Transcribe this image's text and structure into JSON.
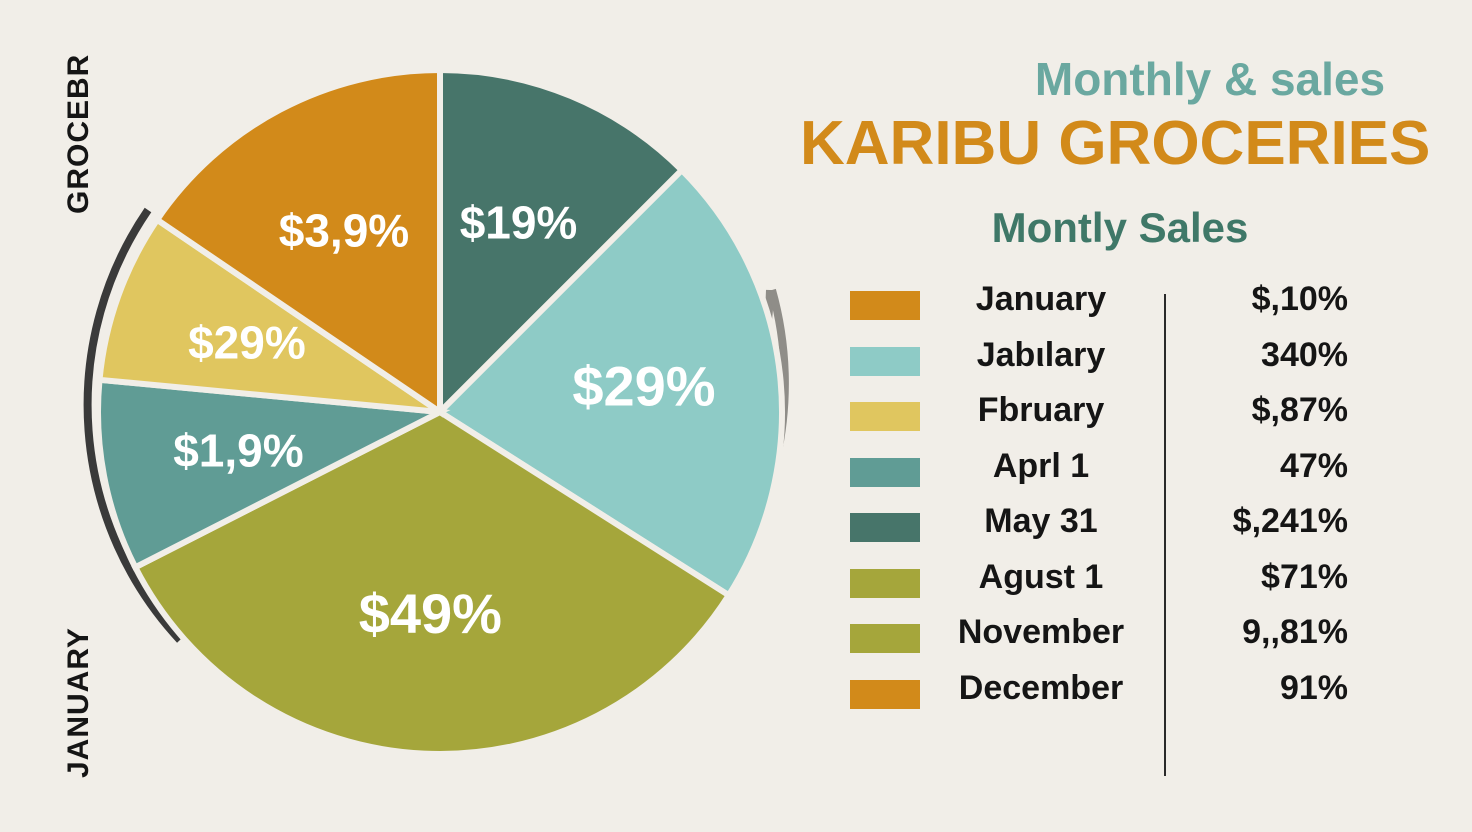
{
  "side_labels": {
    "top": "GROCEBR",
    "bottom": "JANUARY"
  },
  "titles": {
    "line1": "Monthly & sales",
    "line2": "KARIBU GROCERIES",
    "line3": "Montly Sales"
  },
  "colors": {
    "background": "#f1eee8",
    "orange": "#d28a1a",
    "dark_teal": "#47756a",
    "light_teal": "#8ecbc6",
    "yellow": "#e0c65f",
    "mid_teal": "#609c95",
    "olive": "#a5a63b",
    "title_teal": "#6aa8a0"
  },
  "chart_data": {
    "type": "pie",
    "slices": [
      {
        "label": "$19%",
        "value": 12.5,
        "color": "#47756a"
      },
      {
        "label": "$29%",
        "value": 21.5,
        "color": "#8ecbc6"
      },
      {
        "label": "$49%",
        "value": 33.5,
        "color": "#a5a63b"
      },
      {
        "label": "$1,9%",
        "value": 9.0,
        "color": "#609c95"
      },
      {
        "label": "$29%",
        "value": 8.0,
        "color": "#e0c65f"
      },
      {
        "label": "$3,9%",
        "value": 15.5,
        "color": "#d28a1a"
      }
    ],
    "legend": [
      {
        "label": "January",
        "value": "$,10%",
        "color": "#d28a1a"
      },
      {
        "label": "Jabιlary",
        "value": "340%",
        "color": "#8ecbc6"
      },
      {
        "label": "Fbruary",
        "value": "$,87%",
        "color": "#e0c65f"
      },
      {
        "label": "Aprl 1",
        "value": "47%",
        "color": "#609c95"
      },
      {
        "label": "May  31",
        "value": "$,241%",
        "color": "#47756a"
      },
      {
        "label": "Agust 1",
        "value": "$71%",
        "color": "#a5a63b"
      },
      {
        "label": "November",
        "value": "9,,81%",
        "color": "#a5a63b"
      },
      {
        "label": "December",
        "value": "91%",
        "color": "#d28a1a"
      }
    ]
  }
}
